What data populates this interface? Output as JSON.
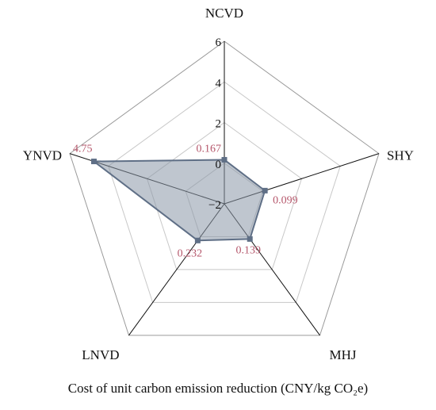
{
  "chart_data": {
    "type": "radar",
    "axes": [
      "NCVD",
      "SHY",
      "MHJ",
      "LNVD",
      "YNVD"
    ],
    "values": [
      0.167,
      0.099,
      0.139,
      0.232,
      4.75
    ],
    "value_labels": [
      "0.167",
      "0.099",
      "0.139",
      "0.232",
      "4.75"
    ],
    "rlim": [
      -2,
      6
    ],
    "ticks": [
      -2,
      0,
      2,
      4,
      6
    ],
    "tick_labels": [
      "−2",
      "0",
      "2",
      "4",
      "6"
    ],
    "grid": true,
    "xlabel": "Cost of unit carbon emission reduction (CNY/kg CO₂e)"
  },
  "colors": {
    "fill": "#8a97a8",
    "stroke": "#5f6f86",
    "marker": "#5f6f86",
    "value_label": "#b5576b",
    "grid": "#c8c8c8",
    "axis": "#111111",
    "text": "#111111"
  }
}
